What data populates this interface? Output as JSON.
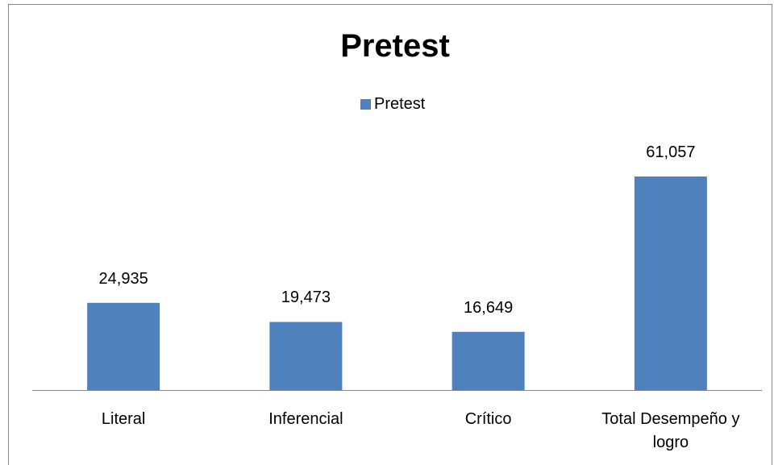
{
  "chart_data": {
    "type": "bar",
    "title": "Pretest",
    "categories": [
      "Literal",
      "Inferencial",
      "Crítico",
      "Total Desempeño y logro"
    ],
    "series": [
      {
        "name": "Pretest",
        "color": "#4f81bd",
        "values": [
          24.935,
          19.473,
          16.649,
          61.057
        ],
        "value_labels": [
          "24,935",
          "19,473",
          "16,649",
          "61,057"
        ]
      }
    ]
  }
}
